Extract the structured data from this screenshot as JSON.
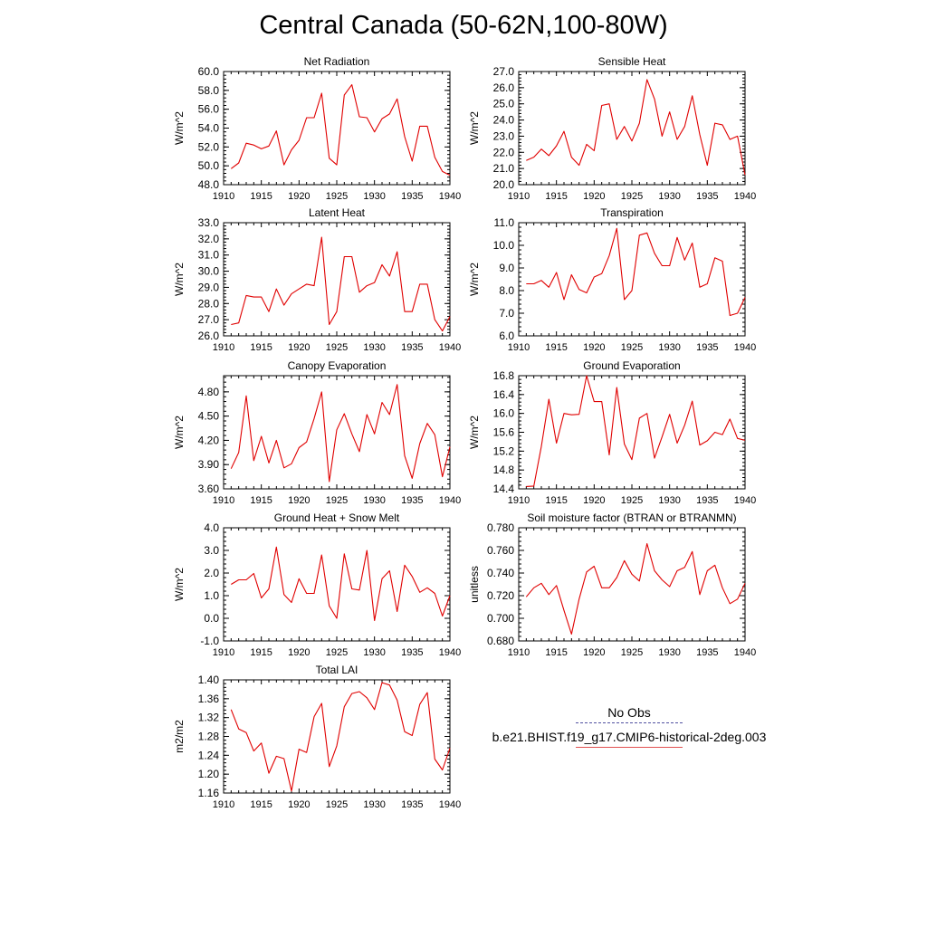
{
  "title": "Central Canada (50-62N,100-80W)",
  "colors": {
    "model_line": "#e00000",
    "obs_line": "#5050a0",
    "axis": "#000000"
  },
  "legend": {
    "obs_label": "No Obs",
    "model_label": "b.e21.BHIST.f19_g17.CMIP6-historical-2deg.003"
  },
  "chart_data": [
    {
      "type": "line",
      "title": "Net Radiation",
      "ylabel": "W/m^2",
      "ylim": [
        48.0,
        60.0
      ],
      "yticks": [
        "48.0",
        "50.0",
        "52.0",
        "54.0",
        "56.0",
        "58.0",
        "60.0"
      ],
      "xlim": [
        1910,
        1940
      ],
      "xticks": [
        "1910",
        "1915",
        "1920",
        "1925",
        "1930",
        "1935",
        "1940"
      ],
      "x": [
        1911,
        1912,
        1913,
        1914,
        1915,
        1916,
        1917,
        1918,
        1919,
        1920,
        1921,
        1922,
        1923,
        1924,
        1925,
        1926,
        1927,
        1928,
        1929,
        1930,
        1931,
        1932,
        1933,
        1934,
        1935,
        1936,
        1937,
        1938,
        1939,
        1940
      ],
      "series": [
        {
          "values": [
            49.7,
            50.3,
            52.4,
            52.2,
            51.8,
            52.1,
            53.7,
            50.1,
            51.7,
            52.7,
            55.1,
            55.1,
            57.7,
            50.8,
            50.1,
            57.5,
            58.6,
            55.2,
            55.1,
            53.6,
            55.0,
            55.5,
            57.1,
            53.1,
            50.5,
            54.2,
            54.2,
            50.9,
            49.4,
            49.0
          ]
        }
      ]
    },
    {
      "type": "line",
      "title": "Sensible Heat",
      "ylabel": "W/m^2",
      "ylim": [
        20.0,
        27.0
      ],
      "yticks": [
        "20.0",
        "21.0",
        "22.0",
        "23.0",
        "24.0",
        "25.0",
        "26.0",
        "27.0"
      ],
      "xlim": [
        1910,
        1940
      ],
      "xticks": [
        "1910",
        "1915",
        "1920",
        "1925",
        "1930",
        "1935",
        "1940"
      ],
      "x": [
        1911,
        1912,
        1913,
        1914,
        1915,
        1916,
        1917,
        1918,
        1919,
        1920,
        1921,
        1922,
        1923,
        1924,
        1925,
        1926,
        1927,
        1928,
        1929,
        1930,
        1931,
        1932,
        1933,
        1934,
        1935,
        1936,
        1937,
        1938,
        1939,
        1940
      ],
      "series": [
        {
          "values": [
            21.5,
            21.7,
            22.2,
            21.8,
            22.4,
            23.3,
            21.7,
            21.2,
            22.5,
            22.1,
            24.9,
            25.0,
            22.8,
            23.6,
            22.7,
            23.8,
            26.5,
            25.3,
            23.0,
            24.5,
            22.8,
            23.6,
            25.5,
            23.1,
            21.2,
            23.8,
            23.7,
            22.8,
            23.0,
            20.6
          ]
        }
      ]
    },
    {
      "type": "line",
      "title": "Latent Heat",
      "ylabel": "W/m^2",
      "ylim": [
        26.0,
        33.0
      ],
      "yticks": [
        "26.0",
        "27.0",
        "28.0",
        "29.0",
        "30.0",
        "31.0",
        "32.0",
        "33.0"
      ],
      "xlim": [
        1910,
        1940
      ],
      "xticks": [
        "1910",
        "1915",
        "1920",
        "1925",
        "1930",
        "1935",
        "1940"
      ],
      "x": [
        1911,
        1912,
        1913,
        1914,
        1915,
        1916,
        1917,
        1918,
        1919,
        1920,
        1921,
        1922,
        1923,
        1924,
        1925,
        1926,
        1927,
        1928,
        1929,
        1930,
        1931,
        1932,
        1933,
        1934,
        1935,
        1936,
        1937,
        1938,
        1939,
        1940
      ],
      "series": [
        {
          "values": [
            26.7,
            26.8,
            28.5,
            28.4,
            28.4,
            27.5,
            28.9,
            27.9,
            28.6,
            28.9,
            29.2,
            29.1,
            32.1,
            26.7,
            27.5,
            30.9,
            30.9,
            28.7,
            29.1,
            29.3,
            30.4,
            29.7,
            31.2,
            27.5,
            27.5,
            29.2,
            29.2,
            27.0,
            26.3,
            27.2
          ]
        }
      ]
    },
    {
      "type": "line",
      "title": "Transpiration",
      "ylabel": "W/m^2",
      "ylim": [
        6.0,
        11.0
      ],
      "yticks": [
        "6.0",
        "7.0",
        "8.0",
        "9.0",
        "10.0",
        "11.0"
      ],
      "xlim": [
        1910,
        1940
      ],
      "xticks": [
        "1910",
        "1915",
        "1920",
        "1925",
        "1930",
        "1935",
        "1940"
      ],
      "x": [
        1911,
        1912,
        1913,
        1914,
        1915,
        1916,
        1917,
        1918,
        1919,
        1920,
        1921,
        1922,
        1923,
        1924,
        1925,
        1926,
        1927,
        1928,
        1929,
        1930,
        1931,
        1932,
        1933,
        1934,
        1935,
        1936,
        1937,
        1938,
        1939,
        1940
      ],
      "series": [
        {
          "values": [
            8.3,
            8.3,
            8.45,
            8.15,
            8.8,
            7.6,
            8.7,
            8.05,
            7.9,
            8.6,
            8.75,
            9.55,
            10.75,
            7.6,
            8.0,
            10.45,
            10.55,
            9.65,
            9.1,
            9.1,
            10.35,
            9.35,
            10.1,
            8.15,
            8.3,
            9.45,
            9.3,
            6.9,
            7.0,
            7.7
          ]
        }
      ]
    },
    {
      "type": "line",
      "title": "Canopy Evaporation",
      "ylabel": "W/m^2",
      "ylim": [
        3.6,
        5.0
      ],
      "yticks": [
        "3.60",
        "3.90",
        "4.20",
        "4.50",
        "4.80"
      ],
      "xlim": [
        1910,
        1940
      ],
      "xticks": [
        "1910",
        "1915",
        "1920",
        "1925",
        "1930",
        "1935",
        "1940"
      ],
      "x": [
        1911,
        1912,
        1913,
        1914,
        1915,
        1916,
        1917,
        1918,
        1919,
        1920,
        1921,
        1922,
        1923,
        1924,
        1925,
        1926,
        1927,
        1928,
        1929,
        1930,
        1931,
        1932,
        1933,
        1934,
        1935,
        1936,
        1937,
        1938,
        1939,
        1940
      ],
      "series": [
        {
          "values": [
            3.85,
            4.05,
            4.75,
            3.95,
            4.25,
            3.92,
            4.2,
            3.86,
            3.91,
            4.11,
            4.18,
            4.47,
            4.8,
            3.69,
            4.33,
            4.53,
            4.28,
            4.06,
            4.52,
            4.28,
            4.67,
            4.52,
            4.89,
            4.01,
            3.73,
            4.16,
            4.41,
            4.27,
            3.75,
            4.12
          ]
        }
      ]
    },
    {
      "type": "line",
      "title": "Ground Evaporation",
      "ylabel": "W/m^2",
      "ylim": [
        14.4,
        16.8
      ],
      "yticks": [
        "14.4",
        "14.8",
        "15.2",
        "15.6",
        "16.0",
        "16.4",
        "16.8"
      ],
      "xlim": [
        1910,
        1940
      ],
      "xticks": [
        "1910",
        "1915",
        "1920",
        "1925",
        "1930",
        "1935",
        "1940"
      ],
      "x": [
        1911,
        1912,
        1913,
        1914,
        1915,
        1916,
        1917,
        1918,
        1919,
        1920,
        1921,
        1922,
        1923,
        1924,
        1925,
        1926,
        1927,
        1928,
        1929,
        1930,
        1931,
        1932,
        1933,
        1934,
        1935,
        1936,
        1937,
        1938,
        1939,
        1940
      ],
      "series": [
        {
          "values": [
            14.45,
            14.46,
            15.3,
            16.3,
            15.37,
            16.0,
            15.97,
            15.98,
            16.8,
            16.25,
            16.25,
            15.12,
            16.55,
            15.35,
            15.02,
            15.9,
            16.0,
            15.05,
            15.5,
            15.98,
            15.37,
            15.75,
            16.26,
            15.33,
            15.42,
            15.6,
            15.55,
            15.88,
            15.47,
            15.43
          ]
        }
      ]
    },
    {
      "type": "line",
      "title": "Ground Heat + Snow Melt",
      "ylabel": "W/m^2",
      "ylim": [
        -1.0,
        4.0
      ],
      "yticks": [
        "-1.0",
        "0.0",
        "1.0",
        "2.0",
        "3.0",
        "4.0"
      ],
      "xlim": [
        1910,
        1940
      ],
      "xticks": [
        "1910",
        "1915",
        "1920",
        "1925",
        "1930",
        "1935",
        "1940"
      ],
      "x": [
        1911,
        1912,
        1913,
        1914,
        1915,
        1916,
        1917,
        1918,
        1919,
        1920,
        1921,
        1922,
        1923,
        1924,
        1925,
        1926,
        1927,
        1928,
        1929,
        1930,
        1931,
        1932,
        1933,
        1934,
        1935,
        1936,
        1937,
        1938,
        1939,
        1940
      ],
      "series": [
        {
          "values": [
            1.5,
            1.7,
            1.7,
            1.98,
            0.9,
            1.3,
            3.15,
            1.05,
            0.7,
            1.75,
            1.1,
            1.1,
            2.8,
            0.55,
            0.0,
            2.85,
            1.3,
            1.25,
            3.0,
            -0.1,
            1.75,
            2.1,
            0.3,
            2.35,
            1.85,
            1.15,
            1.35,
            1.1,
            0.1,
            1.0
          ]
        }
      ]
    },
    {
      "type": "line",
      "title": "Soil moisture factor (BTRAN or BTRANMN)",
      "ylabel": "unitless",
      "ylim": [
        0.68,
        0.78
      ],
      "yticks": [
        "0.680",
        "0.700",
        "0.720",
        "0.740",
        "0.760",
        "0.780"
      ],
      "xlim": [
        1910,
        1940
      ],
      "xticks": [
        "1910",
        "1915",
        "1920",
        "1925",
        "1930",
        "1935",
        "1940"
      ],
      "x": [
        1911,
        1912,
        1913,
        1914,
        1915,
        1916,
        1917,
        1918,
        1919,
        1920,
        1921,
        1922,
        1923,
        1924,
        1925,
        1926,
        1927,
        1928,
        1929,
        1930,
        1931,
        1932,
        1933,
        1934,
        1935,
        1936,
        1937,
        1938,
        1939,
        1940
      ],
      "series": [
        {
          "values": [
            0.719,
            0.727,
            0.731,
            0.721,
            0.729,
            0.707,
            0.686,
            0.717,
            0.741,
            0.746,
            0.727,
            0.727,
            0.736,
            0.751,
            0.739,
            0.733,
            0.766,
            0.742,
            0.734,
            0.728,
            0.742,
            0.745,
            0.759,
            0.721,
            0.742,
            0.747,
            0.727,
            0.713,
            0.717,
            0.731
          ]
        }
      ]
    },
    {
      "type": "line",
      "title": "Total LAI",
      "ylabel": "m2/m2",
      "ylim": [
        1.16,
        1.4
      ],
      "yticks": [
        "1.16",
        "1.20",
        "1.24",
        "1.28",
        "1.32",
        "1.36",
        "1.40"
      ],
      "xlim": [
        1910,
        1940
      ],
      "xticks": [
        "1910",
        "1915",
        "1920",
        "1925",
        "1930",
        "1935",
        "1940"
      ],
      "x": [
        1911,
        1912,
        1913,
        1914,
        1915,
        1916,
        1917,
        1918,
        1919,
        1920,
        1921,
        1922,
        1923,
        1924,
        1925,
        1926,
        1927,
        1928,
        1929,
        1930,
        1931,
        1932,
        1933,
        1934,
        1935,
        1936,
        1937,
        1938,
        1939,
        1940
      ],
      "series": [
        {
          "values": [
            1.337,
            1.296,
            1.288,
            1.249,
            1.266,
            1.202,
            1.238,
            1.233,
            1.164,
            1.253,
            1.246,
            1.322,
            1.35,
            1.216,
            1.26,
            1.343,
            1.371,
            1.375,
            1.362,
            1.337,
            1.394,
            1.389,
            1.357,
            1.29,
            1.282,
            1.348,
            1.373,
            1.232,
            1.209,
            1.255
          ]
        }
      ]
    }
  ]
}
